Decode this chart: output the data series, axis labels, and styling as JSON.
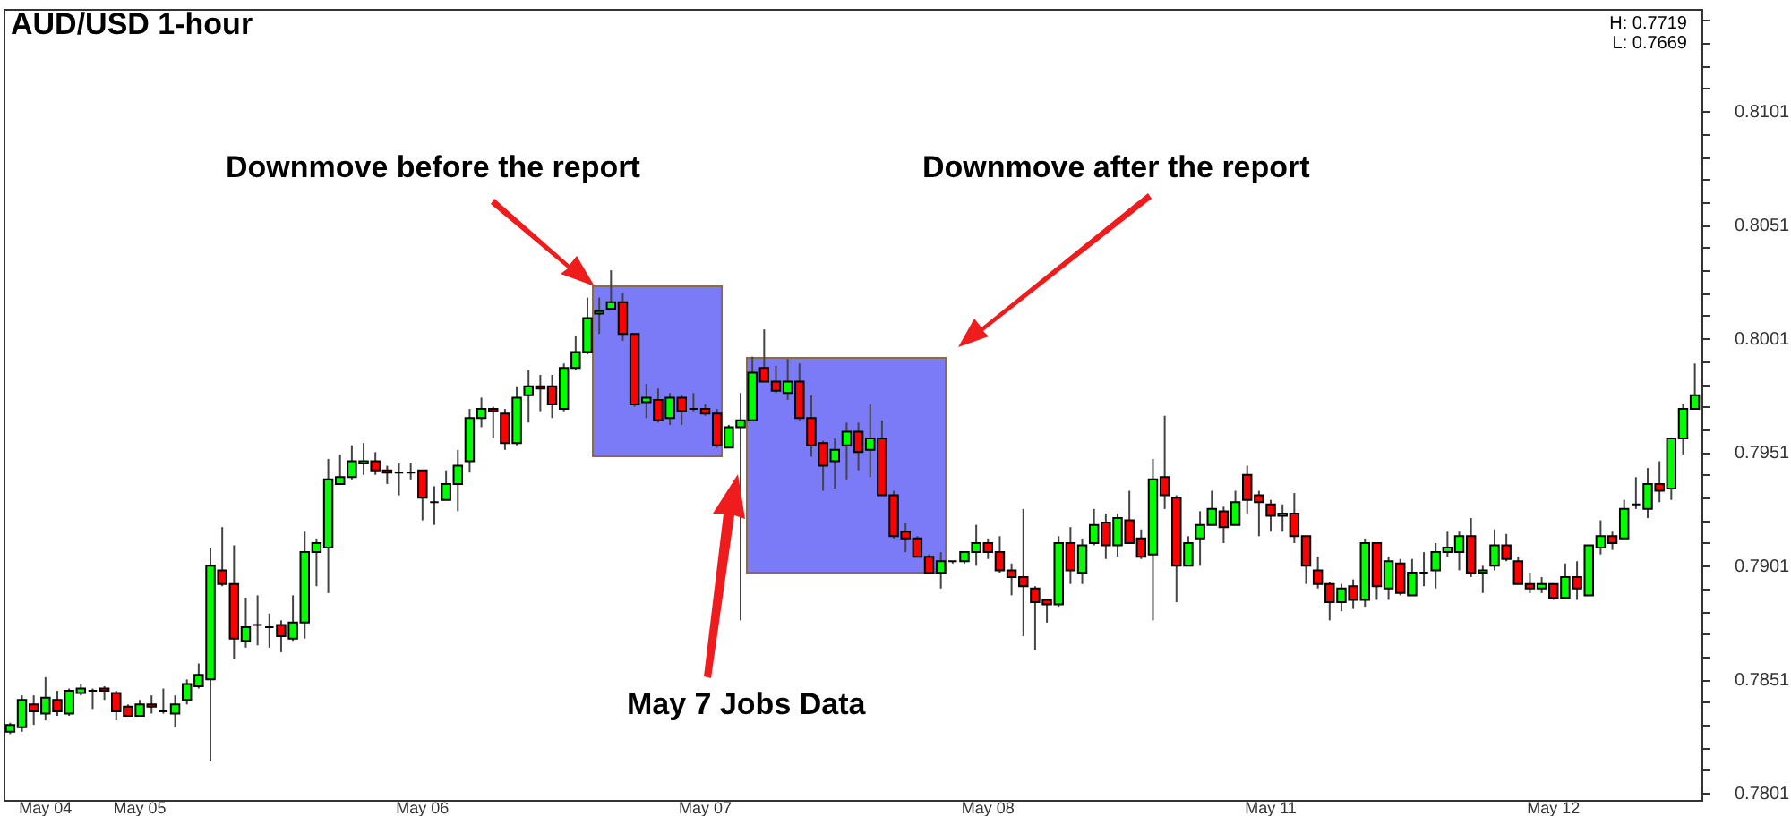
{
  "chart_data": {
    "type": "candlestick",
    "title": "AUD/USD 1-hour",
    "annotations": [
      "Downmove before the report",
      "Downmove after the report",
      "May 7 Jobs Data",
      "H: 0.7719",
      "L: 0.7669"
    ],
    "categories": [
      null,
      null,
      null,
      "May 04",
      null,
      null,
      null,
      null,
      null,
      null,
      null,
      "May 05",
      null,
      null,
      null,
      null,
      null,
      null,
      null,
      null,
      null,
      null,
      null,
      null,
      null,
      null,
      null,
      null,
      null,
      null,
      null,
      null,
      null,
      null,
      null,
      "May 06",
      null,
      null,
      null,
      null,
      null,
      null,
      null,
      null,
      null,
      null,
      null,
      null,
      null,
      null,
      null,
      null,
      null,
      null,
      null,
      null,
      null,
      null,
      null,
      "May 07",
      null,
      null,
      null,
      null,
      null,
      null,
      null,
      null,
      null,
      null,
      null,
      null,
      null,
      null,
      null,
      null,
      null,
      null,
      null,
      null,
      null,
      null,
      null,
      "May 08",
      null,
      null,
      null,
      null,
      null,
      null,
      null,
      null,
      null,
      null,
      null,
      null,
      null,
      null,
      null,
      null,
      null,
      null,
      null,
      null,
      null,
      null,
      null,
      "May 11",
      null,
      null,
      null,
      null,
      null,
      null,
      null,
      null,
      null,
      null,
      null,
      null,
      null,
      null,
      null,
      null,
      null,
      null,
      null,
      null,
      null,
      null,
      null,
      "May 12",
      null,
      null,
      null,
      null,
      null,
      null,
      null,
      null,
      null,
      null,
      null,
      null
    ],
    "ohlc": [
      [
        0.7828,
        0.7832,
        0.7827,
        0.7831
      ],
      [
        0.783,
        0.7844,
        0.7828,
        0.7842
      ],
      [
        0.784,
        0.7844,
        0.7831,
        0.7837
      ],
      [
        0.7836,
        0.7852,
        0.7833,
        0.7843
      ],
      [
        0.7842,
        0.7846,
        0.7835,
        0.7837
      ],
      [
        0.7836,
        0.7847,
        0.7835,
        0.7846
      ],
      [
        0.7845,
        0.7849,
        0.7844,
        0.7847
      ],
      [
        0.7846,
        0.7847,
        0.7838,
        0.7846
      ],
      [
        0.7847,
        0.7848,
        0.7842,
        0.7846
      ],
      [
        0.7845,
        0.7846,
        0.7833,
        0.7837
      ],
      [
        0.7839,
        0.784,
        0.7835,
        0.7835
      ],
      [
        0.7835,
        0.7842,
        0.7835,
        0.784
      ],
      [
        0.784,
        0.7844,
        0.7836,
        0.7839
      ],
      [
        0.7837,
        0.7847,
        0.7836,
        0.7837
      ],
      [
        0.7836,
        0.7844,
        0.783,
        0.784
      ],
      [
        0.7842,
        0.7851,
        0.784,
        0.7849
      ],
      [
        0.7848,
        0.7858,
        0.7847,
        0.7853
      ],
      [
        0.7851,
        0.7909,
        0.7815,
        0.7901
      ],
      [
        0.7899,
        0.7918,
        0.7892,
        0.7893
      ],
      [
        0.7893,
        0.791,
        0.786,
        0.7869
      ],
      [
        0.7868,
        0.7887,
        0.7865,
        0.7874
      ],
      [
        0.7875,
        0.7888,
        0.7866,
        0.7875
      ],
      [
        0.7874,
        0.788,
        0.7865,
        0.7874
      ],
      [
        0.7875,
        0.7877,
        0.7863,
        0.787
      ],
      [
        0.7869,
        0.7888,
        0.7868,
        0.7876
      ],
      [
        0.7876,
        0.7916,
        0.7869,
        0.7907
      ],
      [
        0.7907,
        0.7913,
        0.7892,
        0.7911
      ],
      [
        0.7909,
        0.7948,
        0.7889,
        0.7939
      ],
      [
        0.7937,
        0.795,
        0.7937,
        0.794
      ],
      [
        0.794,
        0.7954,
        0.7939,
        0.7947
      ],
      [
        0.7946,
        0.7955,
        0.7941,
        0.7947
      ],
      [
        0.7947,
        0.7951,
        0.7941,
        0.7943
      ],
      [
        0.7943,
        0.7945,
        0.7937,
        0.7942
      ],
      [
        0.7942,
        0.7946,
        0.7932,
        0.7942
      ],
      [
        0.7942,
        0.7946,
        0.7939,
        0.7942
      ],
      [
        0.7943,
        0.7943,
        0.7921,
        0.7931
      ],
      [
        0.7929,
        0.7936,
        0.7919,
        0.7929
      ],
      [
        0.793,
        0.7943,
        0.793,
        0.7937
      ],
      [
        0.7937,
        0.7952,
        0.7925,
        0.7945
      ],
      [
        0.7947,
        0.797,
        0.7942,
        0.7966
      ],
      [
        0.7966,
        0.7975,
        0.7962,
        0.797
      ],
      [
        0.797,
        0.7971,
        0.7957,
        0.7969
      ],
      [
        0.7968,
        0.797,
        0.7952,
        0.7955
      ],
      [
        0.7955,
        0.798,
        0.7954,
        0.7975
      ],
      [
        0.7976,
        0.7987,
        0.7964,
        0.798
      ],
      [
        0.798,
        0.7985,
        0.7969,
        0.7979
      ],
      [
        0.798,
        0.7985,
        0.7966,
        0.7972
      ],
      [
        0.797,
        0.799,
        0.7969,
        0.7988
      ],
      [
        0.7988,
        0.8002,
        0.7987,
        0.7995
      ],
      [
        0.7995,
        0.8019,
        0.7994,
        0.801
      ],
      [
        0.8012,
        0.8019,
        0.8003,
        0.8013
      ],
      [
        0.8014,
        0.8031,
        0.8014,
        0.8017
      ],
      [
        0.8017,
        0.8021,
        0.8,
        0.8003
      ],
      [
        0.8003,
        0.8003,
        0.7971,
        0.7972
      ],
      [
        0.7973,
        0.7981,
        0.7966,
        0.7975
      ],
      [
        0.7974,
        0.7979,
        0.7964,
        0.7965
      ],
      [
        0.7966,
        0.7977,
        0.7963,
        0.7975
      ],
      [
        0.7975,
        0.7976,
        0.7963,
        0.7969
      ],
      [
        0.797,
        0.7977,
        0.7969,
        0.797
      ],
      [
        0.797,
        0.7972,
        0.7967,
        0.7968
      ],
      [
        0.7968,
        0.797,
        0.7953,
        0.7954
      ],
      [
        0.7953,
        0.7963,
        0.7953,
        0.7962
      ],
      [
        0.7962,
        0.7977,
        0.7877,
        0.7965
      ],
      [
        0.7965,
        0.7993,
        0.7965,
        0.7986
      ],
      [
        0.7988,
        0.8005,
        0.7982,
        0.7982
      ],
      [
        0.7982,
        0.7989,
        0.7977,
        0.7978
      ],
      [
        0.7977,
        0.7992,
        0.7974,
        0.7982
      ],
      [
        0.7982,
        0.799,
        0.7965,
        0.7966
      ],
      [
        0.7966,
        0.7976,
        0.7949,
        0.7954
      ],
      [
        0.7955,
        0.7956,
        0.7934,
        0.7945
      ],
      [
        0.7947,
        0.7957,
        0.7935,
        0.7952
      ],
      [
        0.7954,
        0.7964,
        0.7939,
        0.796
      ],
      [
        0.796,
        0.7964,
        0.7943,
        0.7951
      ],
      [
        0.7952,
        0.7972,
        0.794,
        0.7957
      ],
      [
        0.7957,
        0.7965,
        0.7932,
        0.7932
      ],
      [
        0.7932,
        0.7934,
        0.7913,
        0.7914
      ],
      [
        0.7916,
        0.792,
        0.7907,
        0.7913
      ],
      [
        0.7913,
        0.7914,
        0.7905,
        0.7905
      ],
      [
        0.7905,
        0.7906,
        0.7898,
        0.7898
      ],
      [
        0.7898,
        0.7907,
        0.7891,
        0.7903
      ],
      [
        0.7903,
        0.7903,
        0.7902,
        0.7903
      ],
      [
        0.7903,
        0.7907,
        0.7902,
        0.7907
      ],
      [
        0.7907,
        0.7919,
        0.7901,
        0.7911
      ],
      [
        0.7911,
        0.7913,
        0.7904,
        0.7907
      ],
      [
        0.7907,
        0.7914,
        0.7898,
        0.7899
      ],
      [
        0.7899,
        0.7902,
        0.7888,
        0.7896
      ],
      [
        0.7896,
        0.7926,
        0.787,
        0.7892
      ],
      [
        0.7891,
        0.7892,
        0.7864,
        0.7885
      ],
      [
        0.7886,
        0.7886,
        0.7876,
        0.7884
      ],
      [
        0.7884,
        0.7914,
        0.7883,
        0.7911
      ],
      [
        0.7911,
        0.7918,
        0.7893,
        0.7899
      ],
      [
        0.7898,
        0.7913,
        0.7893,
        0.791
      ],
      [
        0.7911,
        0.7926,
        0.791,
        0.7919
      ],
      [
        0.792,
        0.7924,
        0.7904,
        0.791
      ],
      [
        0.791,
        0.7924,
        0.7905,
        0.7922
      ],
      [
        0.7921,
        0.7934,
        0.7911,
        0.7911
      ],
      [
        0.7913,
        0.7917,
        0.7904,
        0.7905
      ],
      [
        0.7906,
        0.7948,
        0.7877,
        0.7939
      ],
      [
        0.794,
        0.7967,
        0.7926,
        0.7932
      ],
      [
        0.7931,
        0.7932,
        0.7885,
        0.7901
      ],
      [
        0.7901,
        0.7914,
        0.7901,
        0.7911
      ],
      [
        0.7913,
        0.7925,
        0.7901,
        0.7919
      ],
      [
        0.7919,
        0.7934,
        0.7919,
        0.7926
      ],
      [
        0.7925,
        0.7927,
        0.7911,
        0.7918
      ],
      [
        0.7919,
        0.7934,
        0.7919,
        0.7929
      ],
      [
        0.7941,
        0.7945,
        0.7924,
        0.793
      ],
      [
        0.7932,
        0.7934,
        0.7914,
        0.7929
      ],
      [
        0.7928,
        0.793,
        0.7916,
        0.7923
      ],
      [
        0.7923,
        0.7928,
        0.7916,
        0.7924
      ],
      [
        0.7924,
        0.7933,
        0.7911,
        0.7914
      ],
      [
        0.7914,
        0.7914,
        0.7893,
        0.7901
      ],
      [
        0.7899,
        0.7905,
        0.7891,
        0.7893
      ],
      [
        0.7893,
        0.7894,
        0.7877,
        0.7885
      ],
      [
        0.7885,
        0.7893,
        0.7881,
        0.7891
      ],
      [
        0.7892,
        0.7895,
        0.7882,
        0.7886
      ],
      [
        0.7886,
        0.7913,
        0.7883,
        0.7911
      ],
      [
        0.7911,
        0.7911,
        0.7886,
        0.7892
      ],
      [
        0.7891,
        0.7905,
        0.7886,
        0.7903
      ],
      [
        0.7902,
        0.7904,
        0.7888,
        0.7889
      ],
      [
        0.7888,
        0.7904,
        0.7888,
        0.7898
      ],
      [
        0.7898,
        0.7907,
        0.7892,
        0.7898
      ],
      [
        0.7899,
        0.7911,
        0.7891,
        0.7907
      ],
      [
        0.7907,
        0.7916,
        0.7905,
        0.7909
      ],
      [
        0.7907,
        0.7916,
        0.7899,
        0.7914
      ],
      [
        0.7914,
        0.7922,
        0.7896,
        0.7898
      ],
      [
        0.7898,
        0.7901,
        0.7889,
        0.7899
      ],
      [
        0.7901,
        0.7917,
        0.7899,
        0.791
      ],
      [
        0.791,
        0.7915,
        0.7903,
        0.7904
      ],
      [
        0.7903,
        0.7905,
        0.7893,
        0.7893
      ],
      [
        0.7893,
        0.7898,
        0.7889,
        0.7891
      ],
      [
        0.7891,
        0.7896,
        0.7889,
        0.7893
      ],
      [
        0.7893,
        0.7893,
        0.7886,
        0.7887
      ],
      [
        0.7887,
        0.7902,
        0.7887,
        0.7896
      ],
      [
        0.7896,
        0.7903,
        0.7886,
        0.7891
      ],
      [
        0.7888,
        0.791,
        0.7888,
        0.791
      ],
      [
        0.7909,
        0.7921,
        0.7906,
        0.7914
      ],
      [
        0.7914,
        0.7916,
        0.7908,
        0.7911
      ],
      [
        0.7913,
        0.793,
        0.7913,
        0.7926
      ],
      [
        0.7928,
        0.794,
        0.7926,
        0.7928
      ],
      [
        0.7926,
        0.7944,
        0.7922,
        0.7937
      ],
      [
        0.7937,
        0.7947,
        0.7929,
        0.7934
      ],
      [
        0.7935,
        0.7957,
        0.793,
        0.7957
      ],
      [
        0.7957,
        0.7972,
        0.795,
        0.797
      ],
      [
        0.797,
        0.799,
        0.797,
        0.7976
      ]
    ],
    "colors": [
      "#00ff00",
      "#00ff00",
      "#ff0000",
      "#00ff00",
      "#ff0000",
      "#00ff00",
      "#00ff00",
      "#000000",
      "#ff0000",
      "#ff0000",
      "#ff0000",
      "#00ff00",
      "#ff0000",
      "#000000",
      "#00ff00",
      "#00ff00",
      "#00ff00",
      "#00ff00",
      "#ff0000",
      "#ff0000",
      "#00ff00",
      "#000000",
      "#000000",
      "#ff0000",
      "#00ff00",
      "#00ff00",
      "#00ff00",
      "#00ff00",
      "#00ff00",
      "#00ff00",
      "#00ff00",
      "#ff0000",
      "#ff0000",
      "#000000",
      "#000000",
      "#ff0000",
      "#000000",
      "#00ff00",
      "#00ff00",
      "#00ff00",
      "#00ff00",
      "#ff0000",
      "#ff0000",
      "#00ff00",
      "#00ff00",
      "#ff0000",
      "#ff0000",
      "#00ff00",
      "#00ff00",
      "#00ff00",
      "#00ff00",
      "#00ff00",
      "#ff0000",
      "#ff0000",
      "#00ff00",
      "#ff0000",
      "#00ff00",
      "#ff0000",
      "#000000",
      "#ff0000",
      "#ff0000",
      "#00ff00",
      "#00ff00",
      "#00ff00",
      "#ff0000",
      "#ff0000",
      "#00ff00",
      "#ff0000",
      "#ff0000",
      "#ff0000",
      "#00ff00",
      "#00ff00",
      "#ff0000",
      "#00ff00",
      "#ff0000",
      "#ff0000",
      "#ff0000",
      "#ff0000",
      "#ff0000",
      "#00ff00",
      "#000000",
      "#00ff00",
      "#00ff00",
      "#ff0000",
      "#ff0000",
      "#ff0000",
      "#ff0000",
      "#ff0000",
      "#ff0000",
      "#00ff00",
      "#ff0000",
      "#00ff00",
      "#00ff00",
      "#ff0000",
      "#00ff00",
      "#ff0000",
      "#ff0000",
      "#00ff00",
      "#ff0000",
      "#ff0000",
      "#00ff00",
      "#00ff00",
      "#00ff00",
      "#ff0000",
      "#00ff00",
      "#ff0000",
      "#ff0000",
      "#ff0000",
      "#00ff00",
      "#ff0000",
      "#ff0000",
      "#ff0000",
      "#ff0000",
      "#00ff00",
      "#ff0000",
      "#00ff00",
      "#ff0000",
      "#00ff00",
      "#ff0000",
      "#00ff00",
      "#000000",
      "#00ff00",
      "#00ff00",
      "#00ff00",
      "#ff0000",
      "#00ff00",
      "#00ff00",
      "#ff0000",
      "#ff0000",
      "#ff0000",
      "#00ff00",
      "#ff0000",
      "#00ff00",
      "#ff0000",
      "#00ff00",
      "#00ff00",
      "#ff0000",
      "#00ff00",
      "#000000",
      "#00ff00",
      "#ff0000",
      "#00ff00",
      "#00ff00",
      "#00ff00"
    ],
    "ylim": [
      0.7798,
      0.8146
    ],
    "yticks": [
      0.7801,
      {
        "value": 0.7811,
        "label": null
      },
      {
        "value": 0.7821,
        "label": null
      },
      {
        "value": 0.7831,
        "label": null
      },
      {
        "value": 0.7841,
        "label": null
      },
      0.7851,
      {
        "value": 0.7861,
        "label": null
      },
      {
        "value": 0.7871,
        "label": null
      },
      {
        "value": 0.7881,
        "label": null
      },
      {
        "value": 0.7891,
        "label": null
      },
      0.7901,
      {
        "value": 0.7911,
        "label": null
      },
      {
        "value": 0.7921,
        "label": null
      },
      {
        "value": 0.7931,
        "label": null
      },
      {
        "value": 0.7941,
        "label": null
      },
      0.7951,
      {
        "value": 0.7961,
        "label": null
      },
      {
        "value": 0.7971,
        "label": null
      },
      {
        "value": 0.7981,
        "label": null
      },
      {
        "value": 0.7991,
        "label": null
      },
      0.8001,
      {
        "value": 0.8011,
        "label": null
      },
      {
        "value": 0.8021,
        "label": null
      },
      {
        "value": 0.8031,
        "label": null
      },
      {
        "value": 0.8041,
        "label": null
      },
      0.8051,
      {
        "value": 0.8061,
        "label": null
      },
      {
        "value": 0.8071,
        "label": null
      },
      {
        "value": 0.8081,
        "label": null
      },
      {
        "value": 0.8091,
        "label": null
      },
      0.8101,
      {
        "value": 0.8111,
        "label": null
      },
      {
        "value": 0.8121,
        "label": null
      },
      {
        "value": 0.8131,
        "label": null
      },
      {
        "value": 0.8141,
        "label": null
      }
    ],
    "grid": false
  }
}
